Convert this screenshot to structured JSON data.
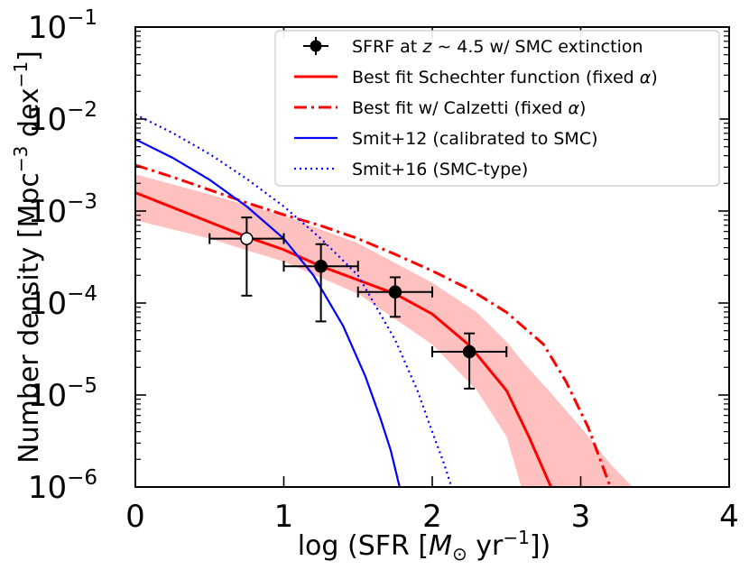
{
  "chart_data": {
    "type": "line",
    "title": "",
    "xlabel": "log (SFR [M⊙ yr⁻¹])",
    "ylabel": "Number density [Mpc⁻³ dex⁻¹]",
    "xlim": [
      0,
      4
    ],
    "ylim_log10": [
      -6,
      -1
    ],
    "yscale": "log",
    "x_ticks": [
      "0",
      "1",
      "2",
      "3",
      "4"
    ],
    "y_ticks": [
      {
        "base": "10",
        "exp": "−1"
      },
      {
        "base": "10",
        "exp": "−2"
      },
      {
        "base": "10",
        "exp": "−3"
      },
      {
        "base": "10",
        "exp": "−4"
      },
      {
        "base": "10",
        "exp": "−5"
      },
      {
        "base": "10",
        "exp": "−6"
      }
    ],
    "legend_position": "top-right",
    "legend": [
      {
        "text": "SFRF at z ∼ 4.5 w/ SMC extinction",
        "style": "errorbar-marker",
        "color": "#000000"
      },
      {
        "text": "Best fit Schechter function (fixed α)",
        "style": "solid",
        "color": "#ff0000"
      },
      {
        "text": "Best fit w/ Calzetti (fixed α)",
        "style": "dashdot",
        "color": "#ff0000"
      },
      {
        "text": "Smit+12  (calibrated to SMC)",
        "style": "solid",
        "color": "#0000ff"
      },
      {
        "text": "Smit+16 (SMC-type)",
        "style": "dotted",
        "color": "#0000ff"
      }
    ],
    "band": {
      "name": "Schechter fit uncertainty",
      "color": "#ffc0c0",
      "x": [
        0,
        0.5,
        1.0,
        1.5,
        2.0,
        2.3,
        2.5,
        2.6,
        2.8,
        3.0,
        3.2,
        3.35
      ],
      "upper_log10": [
        -2.6,
        -2.82,
        -3.05,
        -3.35,
        -3.78,
        -4.1,
        -4.42,
        -4.62,
        -4.98,
        -5.35,
        -5.75,
        -6.0
      ],
      "lower_log10": [
        -3.1,
        -3.3,
        -3.55,
        -3.9,
        -4.45,
        -4.95,
        -5.45,
        -6.0,
        null,
        null,
        null,
        null
      ]
    },
    "series": [
      {
        "name": "Best fit Schechter function (fixed α)",
        "color": "#ff0000",
        "style": "solid",
        "x": [
          0,
          0.25,
          0.5,
          0.75,
          1.0,
          1.25,
          1.5,
          1.75,
          2.0,
          2.25,
          2.5,
          2.65,
          2.8
        ],
        "y_log10": [
          -2.8,
          -2.96,
          -3.12,
          -3.28,
          -3.42,
          -3.6,
          -3.75,
          -3.9,
          -4.12,
          -4.46,
          -4.95,
          -5.45,
          -6.0
        ]
      },
      {
        "name": "Best fit w/ Calzetti (fixed α)",
        "color": "#ff0000",
        "style": "dashdot",
        "x": [
          0,
          0.25,
          0.5,
          0.75,
          1.0,
          1.25,
          1.5,
          1.75,
          2.0,
          2.25,
          2.5,
          2.75,
          2.9,
          3.05,
          3.2
        ],
        "y_log10": [
          -2.5,
          -2.63,
          -2.77,
          -2.91,
          -3.04,
          -3.16,
          -3.3,
          -3.47,
          -3.65,
          -3.85,
          -4.1,
          -4.45,
          -4.85,
          -5.35,
          -6.0
        ]
      },
      {
        "name": "Smit+12  (calibrated to SMC)",
        "color": "#0000ff",
        "style": "solid",
        "x": [
          0,
          0.25,
          0.5,
          0.75,
          1.0,
          1.2,
          1.4,
          1.55,
          1.65,
          1.72,
          1.78
        ],
        "y_log10": [
          -2.22,
          -2.42,
          -2.66,
          -2.95,
          -3.3,
          -3.7,
          -4.25,
          -4.8,
          -5.25,
          -5.6,
          -6.0
        ]
      },
      {
        "name": "Smit+16 (SMC-type)",
        "color": "#0000ff",
        "style": "dotted",
        "x": [
          0,
          0.25,
          0.5,
          0.75,
          1.0,
          1.25,
          1.5,
          1.75,
          1.9,
          2.0,
          2.08,
          2.13
        ],
        "y_log10": [
          -1.95,
          -2.15,
          -2.38,
          -2.65,
          -2.95,
          -3.3,
          -3.7,
          -4.4,
          -4.95,
          -5.4,
          -5.75,
          -6.0
        ]
      }
    ],
    "points": [
      {
        "x": 0.75,
        "y_log10": -3.3,
        "x_err": 0.25,
        "y_lo_log10": -3.92,
        "y_hi_log10": -3.07,
        "filled": false
      },
      {
        "x": 1.25,
        "y_log10": -3.6,
        "x_err": 0.25,
        "y_lo_log10": -4.2,
        "y_hi_log10": -3.36,
        "filled": true
      },
      {
        "x": 1.75,
        "y_log10": -3.88,
        "x_err": 0.25,
        "y_lo_log10": -4.15,
        "y_hi_log10": -3.72,
        "filled": true
      },
      {
        "x": 2.25,
        "y_log10": -4.53,
        "x_err": 0.25,
        "y_lo_log10": -4.93,
        "y_hi_log10": -4.33,
        "filled": true
      }
    ]
  }
}
